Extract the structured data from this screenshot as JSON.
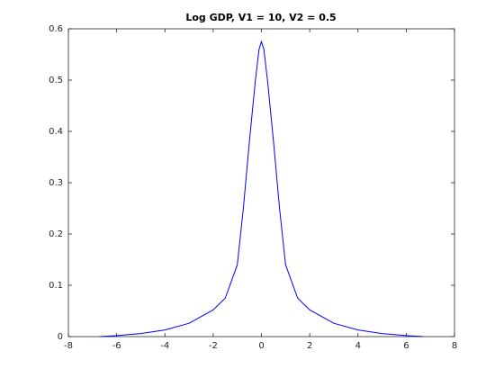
{
  "chart_data": {
    "type": "line",
    "title": "Log GDP, V1 = 10, V2 = 0.5",
    "x": [
      -6.7,
      -6,
      -5,
      -4,
      -3,
      -2,
      -1.5,
      -1,
      -0.75,
      -0.5,
      -0.25,
      -0.1,
      0,
      0.1,
      0.25,
      0.5,
      0.75,
      1,
      1.5,
      2,
      3,
      4,
      5,
      6,
      6.7
    ],
    "values": [
      0,
      0.002,
      0.006,
      0.013,
      0.026,
      0.052,
      0.075,
      0.14,
      0.25,
      0.38,
      0.5,
      0.56,
      0.575,
      0.56,
      0.5,
      0.38,
      0.25,
      0.14,
      0.075,
      0.052,
      0.026,
      0.013,
      0.006,
      0.002,
      0
    ],
    "color": "#0000ff",
    "xlim": [
      -8,
      8
    ],
    "xticks": [
      -8,
      -6,
      -4,
      -2,
      0,
      2,
      4,
      6,
      8
    ],
    "ylim": [
      0,
      0.6
    ],
    "yticks": [
      0,
      0.1,
      0.2,
      0.3,
      0.4,
      0.5,
      0.6
    ]
  }
}
